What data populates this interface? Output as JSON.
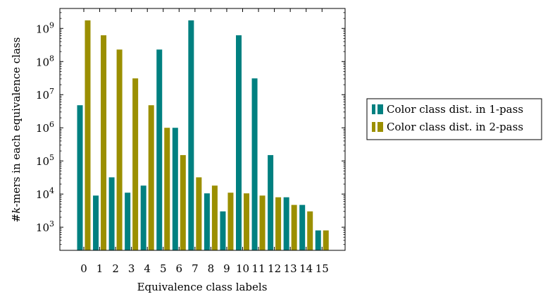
{
  "chart_data": {
    "type": "bar",
    "yscale": "log",
    "ylim": [
      200,
      4000000000
    ],
    "xlabel": "Equivalence class labels",
    "ylabel_prefix": "#",
    "ylabel_k": "k",
    "ylabel_suffix": "-mers in each equivalence class",
    "categories": [
      "0",
      "1",
      "2",
      "3",
      "4",
      "5",
      "6",
      "7",
      "8",
      "9",
      "10",
      "11",
      "12",
      "13",
      "14",
      "15"
    ],
    "yticks": [
      {
        "value": 1000,
        "base": "10",
        "exp": "3"
      },
      {
        "value": 10000,
        "base": "10",
        "exp": "4"
      },
      {
        "value": 100000,
        "base": "10",
        "exp": "5"
      },
      {
        "value": 1000000,
        "base": "10",
        "exp": "6"
      },
      {
        "value": 10000000,
        "base": "10",
        "exp": "7"
      },
      {
        "value": 100000000,
        "base": "10",
        "exp": "8"
      },
      {
        "value": 1000000000,
        "base": "10",
        "exp": "9"
      }
    ],
    "legend_position": "right",
    "series": [
      {
        "name": "Color class dist. in 1-pass",
        "color": "#008080",
        "values": [
          4800000,
          9000,
          32000,
          11000,
          18000,
          230000000,
          1000000,
          1750000000,
          10500,
          3000,
          620000000,
          31000000,
          150000,
          8000,
          4700,
          800
        ]
      },
      {
        "name": "Color class dist. in 2-pass",
        "color": "#9b8f00",
        "values": [
          1750000000,
          620000000,
          230000000,
          31000000,
          4800000,
          1000000,
          150000,
          32000,
          18000,
          11000,
          10500,
          9000,
          8000,
          4700,
          3000,
          800
        ]
      }
    ]
  }
}
